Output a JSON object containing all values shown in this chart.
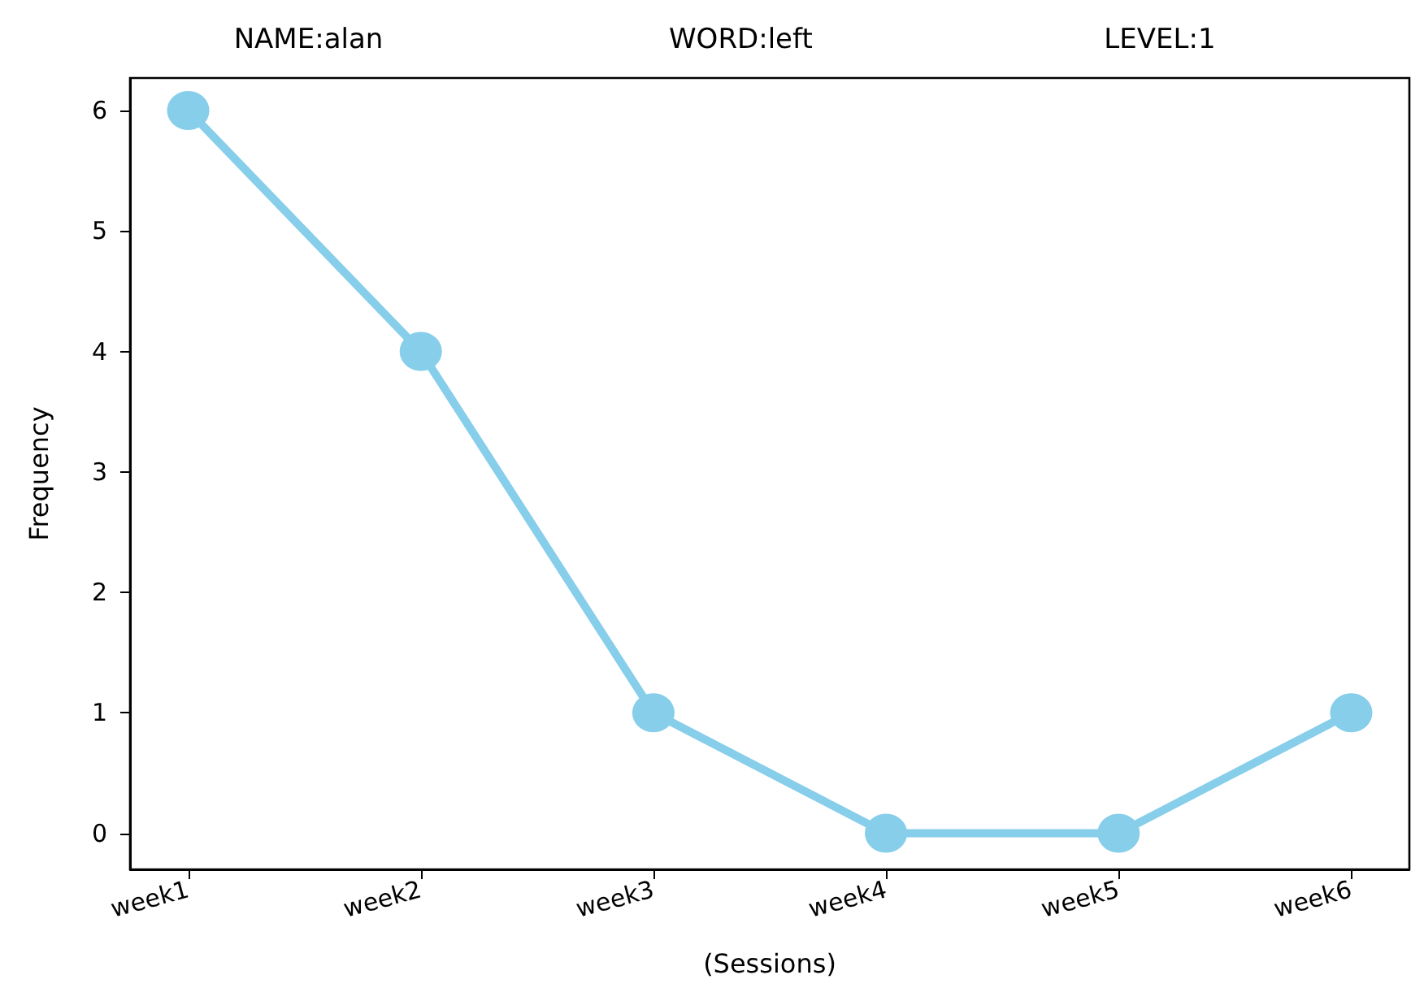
{
  "chart_data": {
    "type": "line",
    "annotations": [
      "NAME:alan",
      "WORD:left",
      "LEVEL:1"
    ],
    "xlabel": "(Sessions)",
    "ylabel": "Frequency",
    "categories": [
      "week1",
      "week2",
      "week3",
      "week4",
      "week5",
      "week6"
    ],
    "series": [
      {
        "color": "#87ceeb",
        "values": [
          6,
          4,
          1,
          0,
          0,
          1
        ]
      }
    ],
    "ylim": [
      -0.3,
      6.27
    ],
    "yticks": [
      0,
      1,
      2,
      3,
      4,
      5,
      6
    ],
    "grid": false,
    "marker": "circle",
    "line_style": "solid"
  }
}
